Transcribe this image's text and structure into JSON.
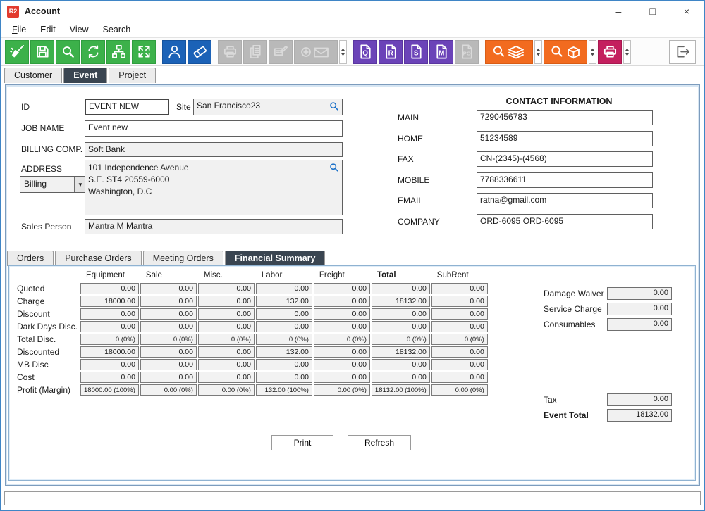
{
  "window": {
    "icon_text": "R2",
    "title": "Account",
    "minimize": "–",
    "maximize": "□",
    "close": "×"
  },
  "menu": {
    "items": [
      {
        "label": "File"
      },
      {
        "label": "Edit"
      },
      {
        "label": "View"
      },
      {
        "label": "Search"
      }
    ]
  },
  "toolbar": {
    "groups": [
      {
        "buttons": [
          {
            "name": "sweep-button",
            "icon": "sweep",
            "style": "green"
          },
          {
            "name": "save-button",
            "icon": "save",
            "style": "green"
          },
          {
            "name": "search-button",
            "icon": "search",
            "style": "green"
          },
          {
            "name": "refresh-button",
            "icon": "refresh",
            "style": "green"
          },
          {
            "name": "hierarchy-button",
            "icon": "hierarchy",
            "style": "green"
          },
          {
            "name": "expand-button",
            "icon": "expand",
            "style": "green"
          }
        ]
      },
      {
        "buttons": [
          {
            "name": "contact-button",
            "icon": "person",
            "style": "blue"
          },
          {
            "name": "ticket-button",
            "icon": "ticket",
            "style": "blue"
          }
        ]
      },
      {
        "buttons": [
          {
            "name": "print-button-disabled",
            "icon": "printer",
            "style": "disabled"
          },
          {
            "name": "copy-button-disabled",
            "icon": "copy",
            "style": "disabled"
          },
          {
            "name": "edit-button-disabled",
            "icon": "edit",
            "style": "disabled"
          },
          {
            "name": "mail-add-button-disabled",
            "icon": "mailplus",
            "style": "disabled",
            "wide": true
          },
          {
            "name": "mail-dropdown",
            "icon": "spin",
            "style": "spin"
          }
        ]
      },
      {
        "buttons": [
          {
            "name": "quote-doc-button",
            "icon": "doc",
            "letter": "Q",
            "style": "purple"
          },
          {
            "name": "r-doc-button",
            "icon": "doc",
            "letter": "R",
            "style": "purple"
          },
          {
            "name": "s-doc-button",
            "icon": "doc",
            "letter": "S",
            "style": "purple"
          },
          {
            "name": "m-doc-button",
            "icon": "doc",
            "letter": "M",
            "style": "purple"
          },
          {
            "name": "po-doc-button-disabled",
            "icon": "doc",
            "letter": "PO",
            "style": "disabled-plain"
          }
        ]
      },
      {
        "buttons": [
          {
            "name": "search-stack-button",
            "icon": "searchlayers",
            "style": "orange",
            "wide": true
          },
          {
            "name": "search-stack-dropdown",
            "icon": "spin",
            "style": "spin"
          },
          {
            "name": "search-item-button",
            "icon": "searchbox",
            "style": "orange",
            "wide": true
          },
          {
            "name": "search-item-dropdown",
            "icon": "spin",
            "style": "spin"
          },
          {
            "name": "label-print-button",
            "icon": "printer",
            "style": "pink"
          },
          {
            "name": "label-print-dropdown",
            "icon": "spin",
            "style": "spin"
          }
        ]
      },
      {
        "right": true,
        "buttons": [
          {
            "name": "exit-button",
            "icon": "exit",
            "style": "plain"
          }
        ]
      }
    ]
  },
  "tabs": [
    {
      "label": "Customer",
      "active": false
    },
    {
      "label": "Event",
      "active": true
    },
    {
      "label": "Project",
      "active": false
    }
  ],
  "form": {
    "id_label": "ID",
    "id_value": "EVENT NEW",
    "site_label": "Site",
    "site_value": "San Francisco23",
    "job_label": "JOB NAME",
    "job_value": "Event new",
    "billing_label": "BILLING COMP.",
    "billing_value": "Soft Bank",
    "address_label": "ADDRESS",
    "address_type": "Billing",
    "address_line1": "101 Independence Avenue",
    "address_line2": "S.E. ST4 20559-6000",
    "address_line3": "Washington, D.C",
    "sales_label": "Sales Person",
    "sales_value": "Mantra M Mantra"
  },
  "contact": {
    "title": "CONTACT INFORMATION",
    "fields": [
      {
        "key": "main",
        "label": "MAIN",
        "value": "7290456783"
      },
      {
        "key": "home",
        "label": "HOME",
        "value": "51234589"
      },
      {
        "key": "fax",
        "label": "FAX",
        "value": "CN-(2345)-(4568)"
      },
      {
        "key": "mobile",
        "label": "MOBILE",
        "value": "7788336611"
      },
      {
        "key": "email",
        "label": "EMAIL",
        "value": "ratna@gmail.com"
      },
      {
        "key": "company",
        "label": "COMPANY",
        "value": "ORD-6095 ORD-6095"
      }
    ]
  },
  "subtabs": [
    {
      "label": "Orders",
      "active": false
    },
    {
      "label": "Purchase Orders",
      "active": false
    },
    {
      "label": "Meeting Orders",
      "active": false
    },
    {
      "label": "Financial Summary",
      "active": true
    }
  ],
  "financial": {
    "columns": [
      {
        "label": "Equipment",
        "bold": false
      },
      {
        "label": "Sale",
        "bold": false
      },
      {
        "label": "Misc.",
        "bold": false
      },
      {
        "label": "Labor",
        "bold": false
      },
      {
        "label": "Freight",
        "bold": false
      },
      {
        "label": "Total",
        "bold": true
      },
      {
        "label": "SubRent",
        "bold": false
      }
    ],
    "rows": [
      {
        "label": "Quoted",
        "values": [
          "0.00",
          "0.00",
          "0.00",
          "0.00",
          "0.00",
          "0.00",
          "0.00"
        ]
      },
      {
        "label": "Charge",
        "values": [
          "18000.00",
          "0.00",
          "0.00",
          "132.00",
          "0.00",
          "18132.00",
          "0.00"
        ]
      },
      {
        "label": "Discount",
        "values": [
          "0.00",
          "0.00",
          "0.00",
          "0.00",
          "0.00",
          "0.00",
          "0.00"
        ]
      },
      {
        "label": "Dark Days Disc.",
        "values": [
          "0.00",
          "0.00",
          "0.00",
          "0.00",
          "0.00",
          "0.00",
          "0.00"
        ]
      },
      {
        "label": "Total Disc.",
        "values": [
          "0 (0%)",
          "0 (0%)",
          "0 (0%)",
          "0 (0%)",
          "0 (0%)",
          "0 (0%)",
          "0 (0%)"
        ]
      },
      {
        "label": "Discounted",
        "values": [
          "18000.00",
          "0.00",
          "0.00",
          "132.00",
          "0.00",
          "18132.00",
          "0.00"
        ]
      },
      {
        "label": "MB Disc",
        "values": [
          "0.00",
          "0.00",
          "0.00",
          "0.00",
          "0.00",
          "0.00",
          "0.00"
        ]
      },
      {
        "label": "Cost",
        "values": [
          "0.00",
          "0.00",
          "0.00",
          "0.00",
          "0.00",
          "0.00",
          "0.00"
        ]
      },
      {
        "label": "Profit (Margin)",
        "values": [
          "18000.00 (100%)",
          "0.00 (0%)",
          "0.00 (0%)",
          "132.00 (100%)",
          "0.00 (0%)",
          "18132.00 (100%)",
          "0.00 (0%)"
        ]
      }
    ],
    "side_fields": [
      {
        "key": "damage-waiver",
        "label": "Damage Waiver",
        "value": "0.00"
      },
      {
        "key": "service-charge",
        "label": "Service Charge",
        "value": "0.00"
      },
      {
        "key": "consumables",
        "label": "Consumables",
        "value": "0.00"
      }
    ],
    "totals": [
      {
        "key": "tax",
        "label": "Tax",
        "value": "0.00",
        "bold": false
      },
      {
        "key": "event-total",
        "label": "Event Total",
        "value": "18132.00",
        "bold": true
      }
    ],
    "print_label": "Print",
    "refresh_label": "Refresh"
  }
}
